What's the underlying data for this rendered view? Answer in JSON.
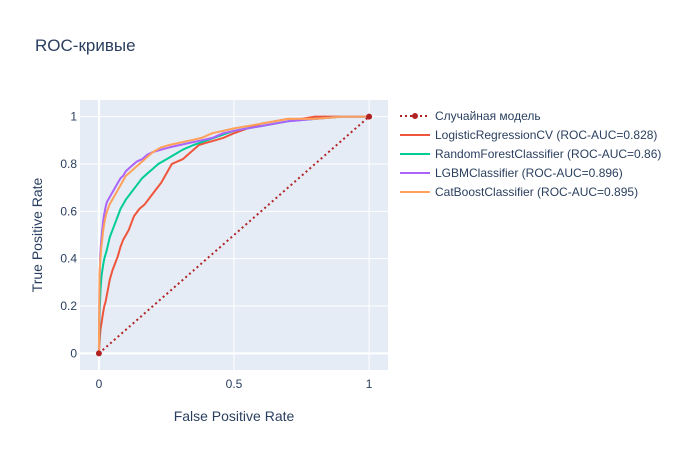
{
  "chart_data": {
    "type": "line",
    "title": "ROC-кривые",
    "xlabel": "False Positive Rate",
    "ylabel": "True Positive Rate",
    "xlim": [
      -0.07,
      1.07
    ],
    "ylim": [
      -0.07,
      1.07
    ],
    "x_ticks": [
      0,
      0.5,
      1
    ],
    "x_tick_labels": [
      "0",
      "0.5",
      "1"
    ],
    "y_ticks": [
      0,
      0.2,
      0.4,
      0.6,
      0.8,
      1
    ],
    "y_tick_labels": [
      "0",
      "0.2",
      "0.4",
      "0.6",
      "0.8",
      "1"
    ],
    "grid": true,
    "legend_position": "right",
    "series": [
      {
        "name": "Случайная модель",
        "color": "#b22222",
        "style": "dotted",
        "markers": true,
        "x": [
          0,
          1
        ],
        "y": [
          0,
          1
        ]
      },
      {
        "name": "LogisticRegressionCV (ROC-AUC=0.828)",
        "color": "#ef553b",
        "style": "solid",
        "x": [
          0,
          0.003,
          0.006,
          0.01,
          0.015,
          0.02,
          0.025,
          0.03,
          0.035,
          0.04,
          0.05,
          0.06,
          0.07,
          0.08,
          0.09,
          0.1,
          0.11,
          0.12,
          0.13,
          0.15,
          0.17,
          0.19,
          0.21,
          0.23,
          0.25,
          0.27,
          0.29,
          0.31,
          0.33,
          0.35,
          0.37,
          0.4,
          0.43,
          0.46,
          0.5,
          0.55,
          0.6,
          0.65,
          0.7,
          0.75,
          0.8,
          0.9,
          1
        ],
        "y": [
          0,
          0.06,
          0.1,
          0.13,
          0.17,
          0.2,
          0.22,
          0.25,
          0.28,
          0.31,
          0.35,
          0.38,
          0.41,
          0.45,
          0.48,
          0.5,
          0.52,
          0.55,
          0.58,
          0.61,
          0.63,
          0.66,
          0.69,
          0.72,
          0.76,
          0.8,
          0.81,
          0.82,
          0.84,
          0.86,
          0.88,
          0.89,
          0.9,
          0.91,
          0.93,
          0.95,
          0.97,
          0.98,
          0.99,
          0.99,
          1,
          1,
          1
        ]
      },
      {
        "name": "RandomForestClassifier (ROC-AUC=0.86)",
        "color": "#00cc96",
        "style": "solid",
        "x": [
          0,
          0.003,
          0.006,
          0.01,
          0.015,
          0.02,
          0.03,
          0.04,
          0.05,
          0.06,
          0.07,
          0.08,
          0.09,
          0.1,
          0.12,
          0.14,
          0.16,
          0.18,
          0.2,
          0.22,
          0.25,
          0.28,
          0.31,
          0.35,
          0.4,
          0.45,
          0.5,
          0.55,
          0.6,
          0.65,
          0.7,
          0.8,
          0.9,
          1
        ],
        "y": [
          0,
          0.18,
          0.27,
          0.33,
          0.37,
          0.4,
          0.44,
          0.49,
          0.52,
          0.55,
          0.58,
          0.61,
          0.63,
          0.65,
          0.68,
          0.71,
          0.74,
          0.76,
          0.78,
          0.8,
          0.82,
          0.84,
          0.86,
          0.88,
          0.9,
          0.92,
          0.94,
          0.95,
          0.96,
          0.97,
          0.98,
          0.99,
          1,
          1
        ]
      },
      {
        "name": "LGBMClassifier (ROC-AUC=0.896)",
        "color": "#ab63fa",
        "style": "solid",
        "x": [
          0,
          0.002,
          0.005,
          0.008,
          0.012,
          0.016,
          0.02,
          0.025,
          0.03,
          0.04,
          0.05,
          0.06,
          0.07,
          0.08,
          0.09,
          0.1,
          0.12,
          0.14,
          0.16,
          0.18,
          0.2,
          0.23,
          0.26,
          0.3,
          0.34,
          0.38,
          0.42,
          0.46,
          0.5,
          0.55,
          0.6,
          0.65,
          0.7,
          0.8,
          0.9,
          1
        ],
        "y": [
          0,
          0.3,
          0.42,
          0.47,
          0.52,
          0.56,
          0.59,
          0.62,
          0.64,
          0.66,
          0.68,
          0.7,
          0.72,
          0.74,
          0.75,
          0.77,
          0.79,
          0.81,
          0.82,
          0.84,
          0.85,
          0.86,
          0.87,
          0.88,
          0.89,
          0.9,
          0.91,
          0.93,
          0.94,
          0.95,
          0.96,
          0.97,
          0.98,
          0.99,
          1,
          1
        ]
      },
      {
        "name": "CatBoostClassifier (ROC-AUC=0.895)",
        "color": "#ffa15a",
        "style": "solid",
        "x": [
          0,
          0.002,
          0.005,
          0.008,
          0.012,
          0.016,
          0.02,
          0.025,
          0.03,
          0.04,
          0.05,
          0.06,
          0.07,
          0.08,
          0.09,
          0.1,
          0.12,
          0.14,
          0.16,
          0.18,
          0.2,
          0.23,
          0.26,
          0.3,
          0.34,
          0.38,
          0.42,
          0.46,
          0.5,
          0.55,
          0.6,
          0.65,
          0.7,
          0.8,
          0.9,
          1
        ],
        "y": [
          0,
          0.34,
          0.39,
          0.44,
          0.48,
          0.52,
          0.55,
          0.58,
          0.6,
          0.63,
          0.65,
          0.67,
          0.69,
          0.71,
          0.73,
          0.75,
          0.77,
          0.79,
          0.81,
          0.83,
          0.85,
          0.87,
          0.88,
          0.89,
          0.9,
          0.91,
          0.93,
          0.94,
          0.95,
          0.96,
          0.97,
          0.98,
          0.99,
          0.99,
          1,
          1
        ]
      }
    ]
  }
}
